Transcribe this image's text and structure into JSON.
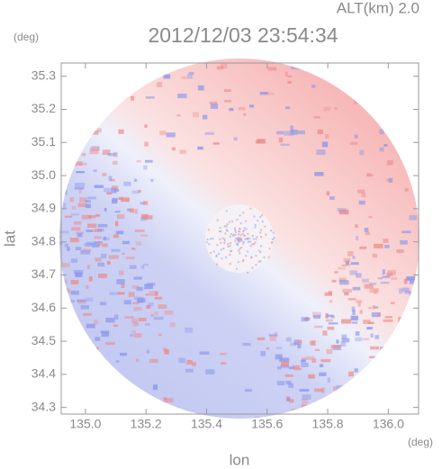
{
  "chart_data": {
    "type": "radar-map",
    "title": "2012/12/03 23:54:34",
    "annotation": "ALT(km) 2.0",
    "xlabel": "lon",
    "ylabel": "lat",
    "x_unit": "(deg)",
    "y_unit": "(deg)",
    "xlim": [
      134.92,
      136.1
    ],
    "ylim": [
      34.28,
      35.34
    ],
    "xticks": [
      {
        "value": 135.0,
        "label": "135.0"
      },
      135.2,
      135.4,
      135.6,
      135.8,
      {
        "value": 136.0,
        "label": "136.0"
      }
    ],
    "yticks": [
      34.3,
      34.4,
      34.5,
      34.6,
      34.7,
      34.8,
      34.9,
      {
        "value": 35.0,
        "label": "35.0"
      },
      35.1,
      35.2,
      35.3
    ]
  }
}
